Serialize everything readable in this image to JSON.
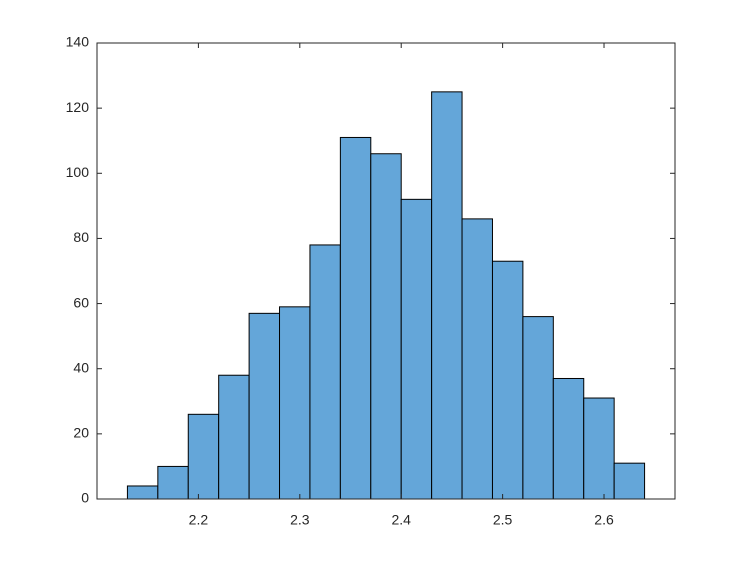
{
  "chart_data": {
    "type": "histogram",
    "bins": [
      2.13,
      2.16,
      2.19,
      2.22,
      2.25,
      2.28,
      2.31,
      2.34,
      2.37,
      2.4,
      2.43,
      2.46,
      2.49,
      2.52,
      2.55,
      2.58,
      2.61,
      2.64
    ],
    "values": [
      4,
      10,
      26,
      38,
      57,
      59,
      78,
      111,
      106,
      92,
      125,
      86,
      73,
      56,
      37,
      31,
      11
    ],
    "color": "#64a6d9",
    "xlim": [
      2.1,
      2.67
    ],
    "xticks": [
      2.2,
      2.3,
      2.4,
      2.5,
      2.6
    ],
    "ylim": [
      0,
      140
    ],
    "yticks": [
      0,
      20,
      40,
      60,
      80,
      100,
      120,
      140
    ],
    "grid": false
  }
}
